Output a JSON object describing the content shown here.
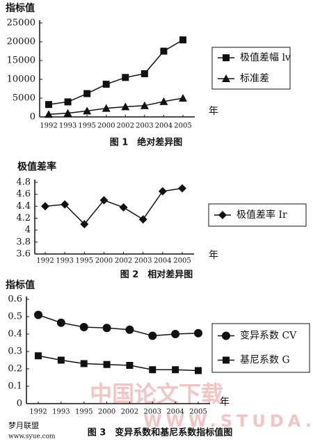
{
  "chart_data": [
    {
      "type": "line",
      "y_label": "指标值",
      "x_label": "年",
      "caption": "图 1　绝对差异图",
      "categories": [
        "1992",
        "1993",
        "1995",
        "2000",
        "2002",
        "2003",
        "2004",
        "2005"
      ],
      "ylim": [
        0,
        25000
      ],
      "yticks": [
        0,
        5000,
        10000,
        15000,
        20000,
        25000
      ],
      "series": [
        {
          "name": "极值差幅 lv",
          "color": "#111111",
          "marker": "square",
          "values": [
            3300,
            4000,
            6200,
            8700,
            10500,
            11500,
            17500,
            20500
          ]
        },
        {
          "name": "标准差",
          "color": "#111111",
          "marker": "triangle",
          "values": [
            700,
            1000,
            1600,
            2300,
            2700,
            3000,
            4100,
            5000
          ]
        }
      ]
    },
    {
      "type": "line",
      "y_label": "极值差率",
      "x_label": "年",
      "caption": "图 2　相对差异图",
      "categories": [
        "1992",
        "1993",
        "1995",
        "2000",
        "2002",
        "2003",
        "2004",
        "2005"
      ],
      "ylim": [
        3.6,
        4.8
      ],
      "yticks": [
        3.6,
        3.8,
        4,
        4.2,
        4.4,
        4.6,
        4.8
      ],
      "series": [
        {
          "name": "极值差率 Ir",
          "color": "#111111",
          "marker": "diamond",
          "values": [
            4.4,
            4.43,
            4.1,
            4.5,
            4.38,
            4.18,
            4.65,
            4.7
          ]
        }
      ]
    },
    {
      "type": "line",
      "y_label": "指标值",
      "x_label": "年",
      "caption": "图 3　变异系数和基尼系数指标值图",
      "categories": [
        "1992",
        "1993",
        "1995",
        "2000",
        "2002",
        "2003",
        "2004",
        "2005"
      ],
      "ylim": [
        0,
        0.6
      ],
      "yticks": [
        0,
        0.1,
        0.2,
        0.3,
        0.4,
        0.5,
        0.6
      ],
      "series": [
        {
          "name": "变异系数 CV",
          "color": "#111111",
          "marker": "circle",
          "values": [
            0.51,
            0.465,
            0.44,
            0.435,
            0.425,
            0.39,
            0.4,
            0.405
          ]
        },
        {
          "name": "基尼系数 G",
          "color": "#111111",
          "marker": "square",
          "values": [
            0.275,
            0.25,
            0.23,
            0.225,
            0.22,
            0.195,
            0.195,
            0.19
          ]
        }
      ]
    }
  ],
  "watermarks": {
    "site": "中国论文下载",
    "url": "WWW.STUDA.",
    "corner": "梦月联盟",
    "corner_url": "www.syue.com"
  }
}
